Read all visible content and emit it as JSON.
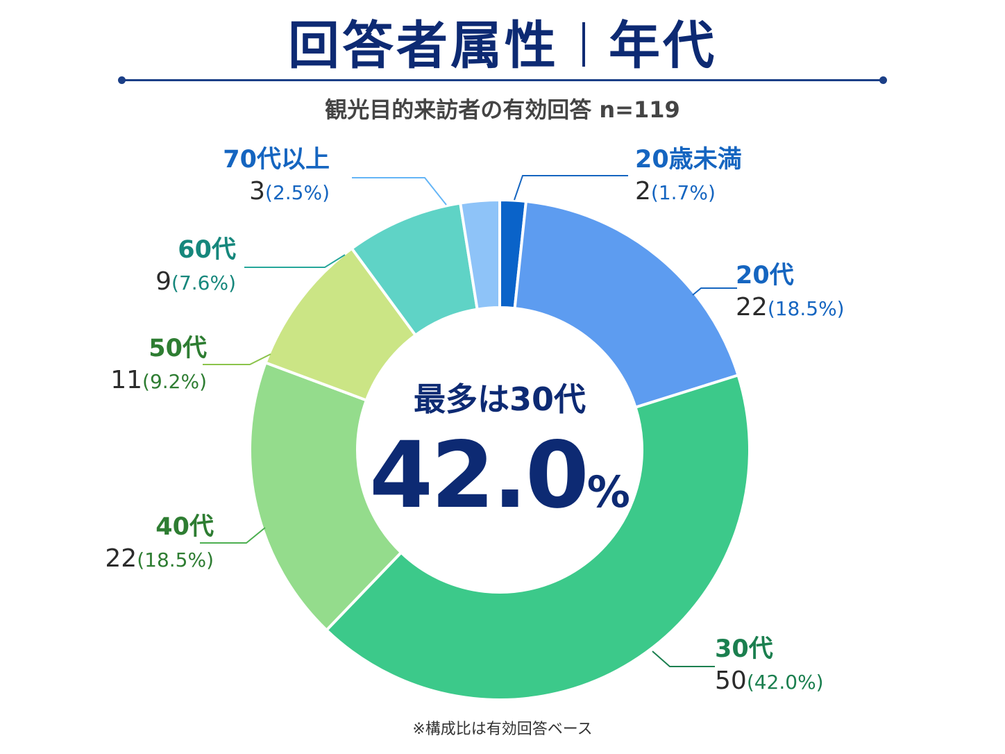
{
  "header": {
    "title_left": "回答者属性",
    "title_right": "年代",
    "subtitle": "観光目的来訪者の有効回答 n=119"
  },
  "center": {
    "headline": "最多は30代",
    "value": "42.0",
    "unit": "%"
  },
  "footnote": "※構成比は有効回答ベース",
  "chart_data": {
    "type": "pie",
    "donut": true,
    "n": 119,
    "title": "回答者属性｜年代",
    "categories": [
      "20歳未満",
      "20代",
      "30代",
      "40代",
      "50代",
      "60代",
      "70代以上"
    ],
    "values": [
      2,
      22,
      50,
      22,
      11,
      9,
      3
    ],
    "percent_labels": [
      "(1.7%)",
      "(18.5%)",
      "(42.0%)",
      "(18.5%)",
      "(9.2%)",
      "(7.6%)",
      "(2.5%)"
    ],
    "colors": [
      "#0a63c9",
      "#5d9cf0",
      "#3cc98a",
      "#94dc8c",
      "#cbe585",
      "#5fd3c6",
      "#8ec3f8"
    ],
    "label_colors": [
      "#1565c0",
      "#1565c0",
      "#1b7f4f",
      "#2e7d32",
      "#2e7d32",
      "#16877c",
      "#1565c0"
    ],
    "leader_colors": [
      "#1565c0",
      "#1565c0",
      "#1b7f4f",
      "#4caf50",
      "#8bc34a",
      "#26a69a",
      "#64b5f6"
    ]
  }
}
